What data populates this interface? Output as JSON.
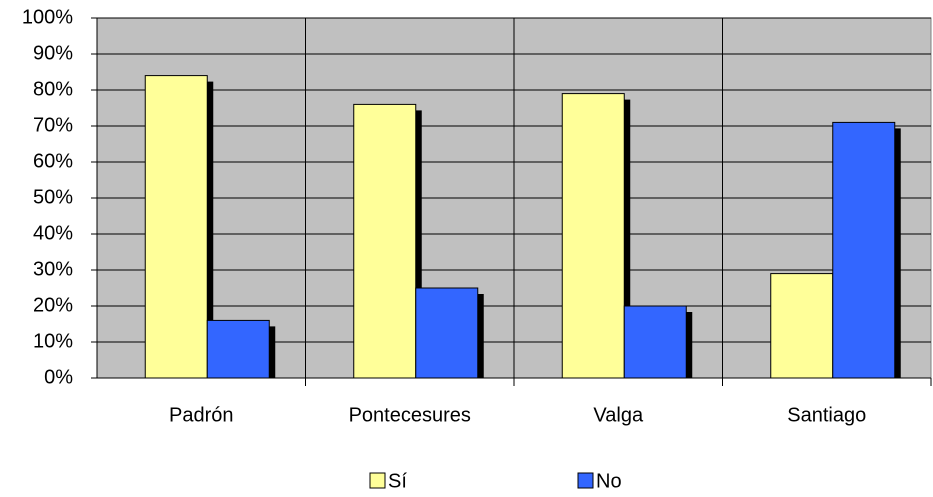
{
  "chart_data": {
    "type": "bar",
    "categories": [
      "Padrón",
      "Pontecesures",
      "Valga",
      "Santiago"
    ],
    "series": [
      {
        "name": "Sí",
        "color": "#ffff99",
        "values": [
          84,
          76,
          79,
          29
        ]
      },
      {
        "name": "No",
        "color": "#3366ff",
        "values": [
          16,
          25,
          20,
          71
        ]
      }
    ],
    "ylim": [
      0,
      100
    ],
    "yticks": [
      {
        "value": 0,
        "label": "0%"
      },
      {
        "value": 10,
        "label": "10%"
      },
      {
        "value": 20,
        "label": "20%"
      },
      {
        "value": 30,
        "label": "30%"
      },
      {
        "value": 40,
        "label": "40%"
      },
      {
        "value": 50,
        "label": "50%"
      },
      {
        "value": 60,
        "label": "60%"
      },
      {
        "value": 70,
        "label": "70%"
      },
      {
        "value": 80,
        "label": "80%"
      },
      {
        "value": 90,
        "label": "90%"
      },
      {
        "value": 100,
        "label": "100%"
      }
    ],
    "grid": true,
    "legend": "bottom"
  }
}
